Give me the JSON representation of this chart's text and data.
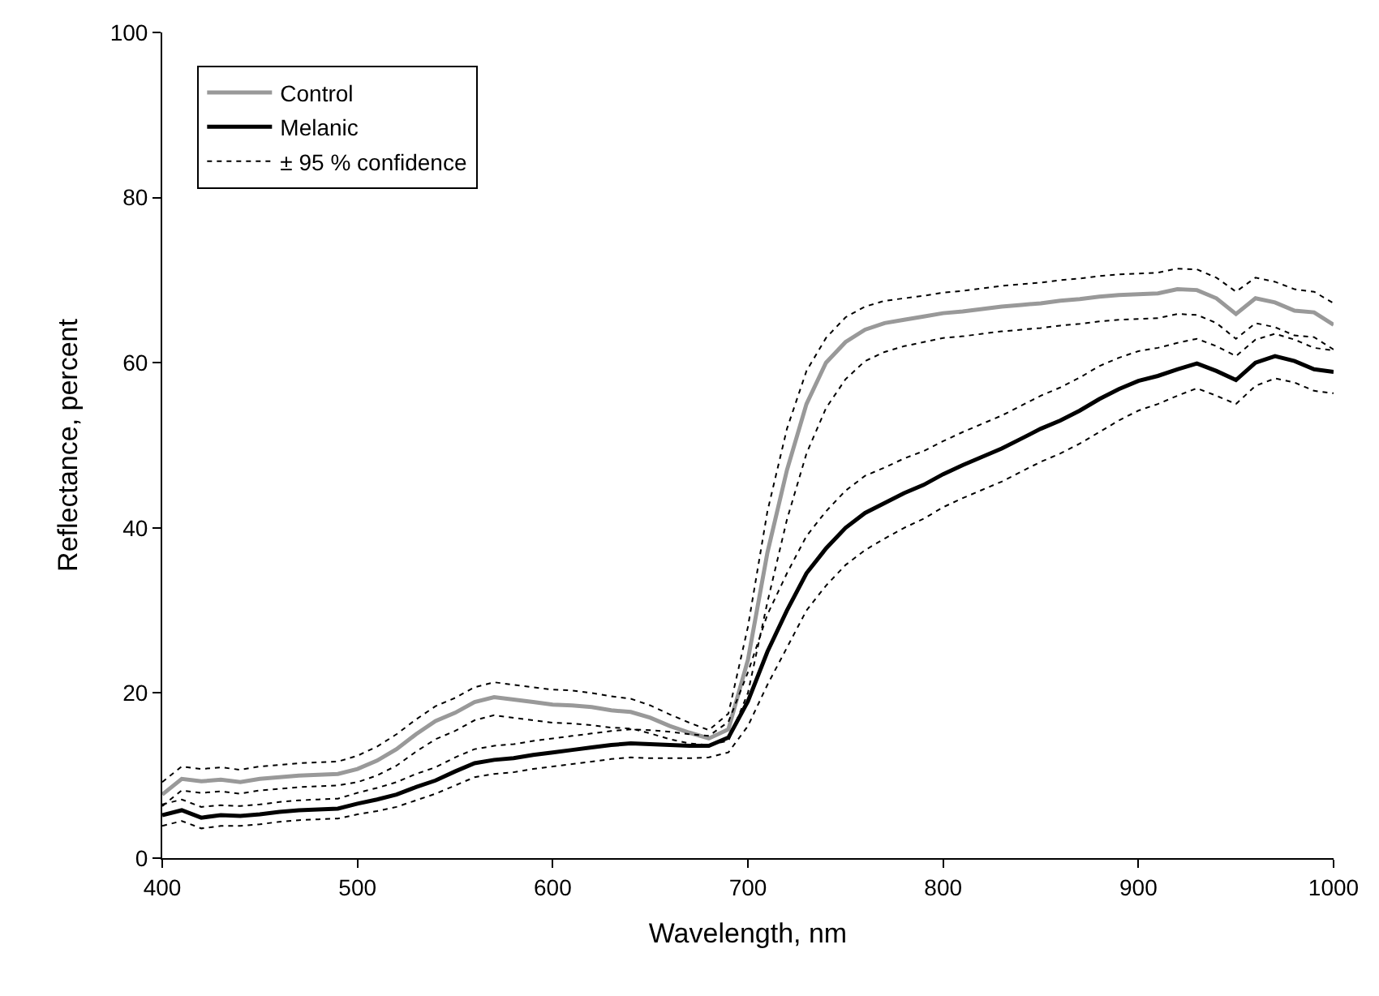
{
  "chart_data": {
    "type": "line",
    "xlabel": "Wavelength, nm",
    "ylabel": "Reflectance, percent",
    "xlim": [
      400,
      1000
    ],
    "xticks": [
      400,
      500,
      600,
      700,
      800,
      900,
      1000
    ],
    "ylim": [
      0,
      100
    ],
    "yticks": [
      0,
      20,
      40,
      60,
      80,
      100
    ],
    "legend": "top left",
    "marker": "none",
    "x": [
      400,
      410,
      420,
      430,
      440,
      450,
      460,
      470,
      480,
      490,
      500,
      510,
      520,
      530,
      540,
      550,
      560,
      570,
      580,
      590,
      600,
      610,
      620,
      630,
      640,
      650,
      660,
      670,
      680,
      690,
      700,
      710,
      720,
      730,
      740,
      750,
      760,
      770,
      780,
      790,
      800,
      810,
      820,
      830,
      840,
      850,
      860,
      870,
      880,
      890,
      900,
      910,
      920,
      930,
      940,
      950,
      960,
      970,
      980,
      990,
      1000
    ],
    "series": [
      {
        "name": "Control",
        "color": "#999999",
        "line_style": "solid",
        "values": [
          7.7,
          9.6,
          9.3,
          9.5,
          9.2,
          9.6,
          9.8,
          10.0,
          10.1,
          10.2,
          10.8,
          11.8,
          13.2,
          15.0,
          16.6,
          17.6,
          18.9,
          19.5,
          19.2,
          18.9,
          18.6,
          18.5,
          18.3,
          17.9,
          17.7,
          17.0,
          16.0,
          15.2,
          14.5,
          15.6,
          24,
          37,
          47,
          55,
          60,
          62.5,
          64,
          64.8,
          65.2,
          65.6,
          66.0,
          66.2,
          66.5,
          66.8,
          67.0,
          67.2,
          67.5,
          67.7,
          68.0,
          68.2,
          68.3,
          68.4,
          68.9,
          68.8,
          67.8,
          65.9,
          67.8,
          67.3,
          66.3,
          66.1,
          64.6
        ]
      },
      {
        "name": "Melanic",
        "color": "#000000",
        "line_style": "solid",
        "values": [
          5.2,
          5.8,
          4.9,
          5.2,
          5.1,
          5.3,
          5.6,
          5.8,
          5.9,
          6.0,
          6.6,
          7.1,
          7.7,
          8.6,
          9.4,
          10.5,
          11.5,
          11.9,
          12.1,
          12.5,
          12.8,
          13.1,
          13.4,
          13.7,
          13.9,
          13.8,
          13.7,
          13.6,
          13.6,
          14.6,
          19,
          25,
          30,
          34.5,
          37.5,
          40,
          41.8,
          43,
          44.2,
          45.2,
          46.5,
          47.6,
          48.6,
          49.6,
          50.8,
          52,
          53,
          54.2,
          55.6,
          56.8,
          57.8,
          58.4,
          59.2,
          59.9,
          59.0,
          57.9,
          60.0,
          60.8,
          60.2,
          59.2,
          58.9
        ]
      },
      {
        "name": "± 95 % confidence",
        "color": "#000000",
        "line_style": "dotted",
        "values": [
          9.2,
          11.1,
          10.8,
          11.0,
          10.7,
          11.1,
          11.3,
          11.5,
          11.6,
          11.7,
          12.4,
          13.5,
          15.0,
          16.8,
          18.4,
          19.4,
          20.7,
          21.3,
          21.0,
          20.7,
          20.4,
          20.3,
          20.0,
          19.6,
          19.3,
          18.5,
          17.4,
          16.4,
          15.5,
          17.5,
          28,
          42,
          52,
          59,
          63,
          65.5,
          66.8,
          67.5,
          67.8,
          68.1,
          68.5,
          68.7,
          69.0,
          69.3,
          69.5,
          69.7,
          70.0,
          70.2,
          70.5,
          70.7,
          70.8,
          70.9,
          71.4,
          71.3,
          70.3,
          68.6,
          70.3,
          69.8,
          68.9,
          68.6,
          67.2
        ]
      },
      {
        "color": "#000000",
        "line_style": "dotted",
        "values": [
          6.3,
          8.2,
          7.9,
          8.1,
          7.8,
          8.2,
          8.4,
          8.6,
          8.7,
          8.8,
          9.2,
          10.0,
          11.2,
          12.9,
          14.4,
          15.4,
          16.7,
          17.3,
          17.0,
          16.7,
          16.4,
          16.3,
          16.1,
          15.8,
          15.7,
          15.1,
          14.4,
          13.9,
          13.7,
          14.2,
          20,
          31,
          41,
          49,
          54.5,
          58,
          60.2,
          61.3,
          62.0,
          62.5,
          63.0,
          63.2,
          63.5,
          63.8,
          64.0,
          64.2,
          64.5,
          64.7,
          65.0,
          65.2,
          65.3,
          65.4,
          65.9,
          65.8,
          64.8,
          62.9,
          64.8,
          64.3,
          63.3,
          63.1,
          61.6
        ]
      },
      {
        "color": "#000000",
        "line_style": "dotted",
        "values": [
          6.5,
          7.1,
          6.2,
          6.4,
          6.3,
          6.5,
          6.8,
          7.0,
          7.1,
          7.2,
          7.9,
          8.5,
          9.2,
          10.2,
          11.0,
          12.2,
          13.2,
          13.6,
          13.8,
          14.2,
          14.5,
          14.8,
          15.1,
          15.4,
          15.6,
          15.5,
          15.3,
          15.0,
          14.8,
          16.5,
          22.5,
          29.5,
          34.5,
          39,
          42,
          44.5,
          46.3,
          47.3,
          48.4,
          49.3,
          50.5,
          51.6,
          52.6,
          53.6,
          54.8,
          56.0,
          57.0,
          58.2,
          59.6,
          60.6,
          61.4,
          61.8,
          62.4,
          62.9,
          62.0,
          60.8,
          62.8,
          63.5,
          62.8,
          61.8,
          61.5
        ]
      },
      {
        "color": "#000000",
        "line_style": "dotted",
        "values": [
          3.9,
          4.5,
          3.6,
          3.9,
          3.9,
          4.1,
          4.4,
          4.6,
          4.7,
          4.8,
          5.3,
          5.7,
          6.2,
          7.0,
          7.8,
          8.8,
          9.8,
          10.2,
          10.4,
          10.8,
          11.1,
          11.4,
          11.7,
          12.0,
          12.2,
          12.1,
          12.1,
          12.1,
          12.2,
          12.8,
          16,
          21,
          25.5,
          30,
          33,
          35.5,
          37.3,
          38.7,
          40.0,
          41.1,
          42.5,
          43.6,
          44.6,
          45.6,
          46.8,
          48.0,
          49.0,
          50.2,
          51.6,
          53.0,
          54.2,
          55.0,
          56.0,
          56.9,
          56.0,
          55.0,
          57.2,
          58.1,
          57.6,
          56.6,
          56.3
        ]
      }
    ]
  }
}
